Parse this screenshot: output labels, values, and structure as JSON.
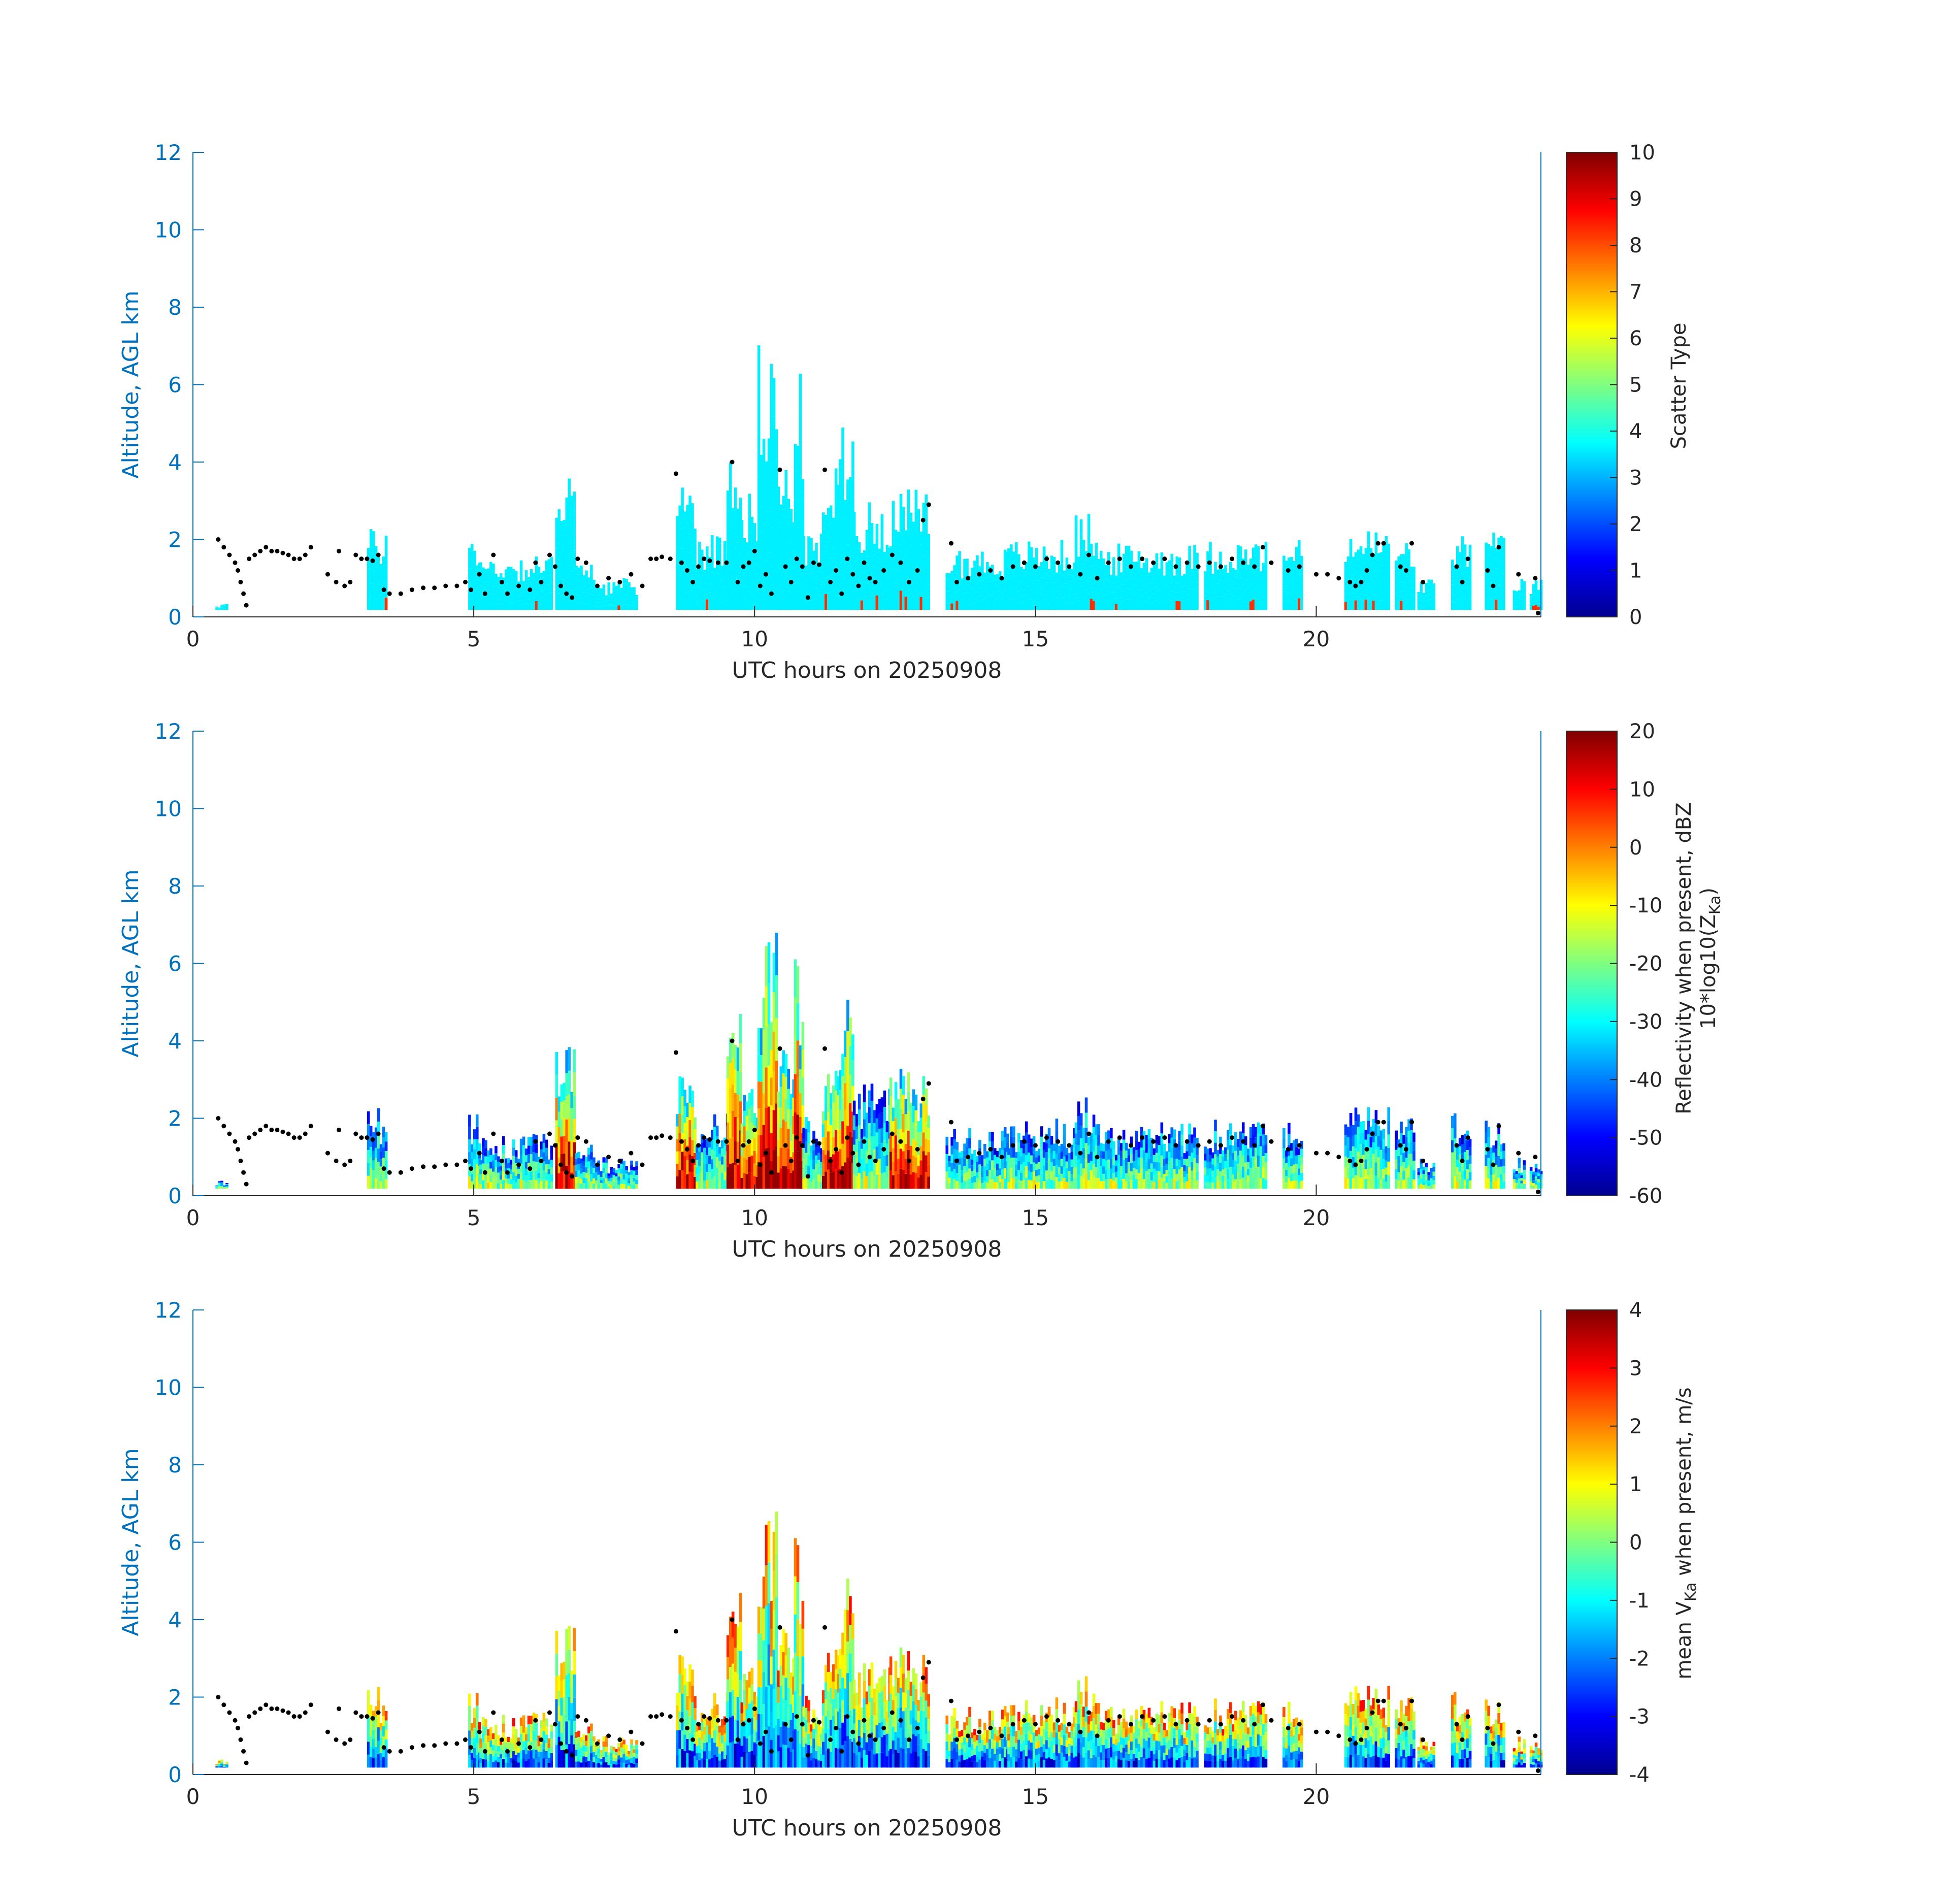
{
  "chart_data": [
    {
      "type": "heatmap",
      "panel": "scatter-type",
      "xlabel": "UTC hours on 20250908",
      "ylabel": "Altitude, AGL km",
      "xlim": [
        0,
        24
      ],
      "ylim": [
        0,
        12
      ],
      "xticks": [
        "0",
        "5",
        "10",
        "15",
        "20"
      ],
      "yticks": [
        "0",
        "2",
        "4",
        "6",
        "8",
        "10",
        "12"
      ],
      "colorbar": {
        "label_lines": [
          "Scatter Type"
        ],
        "range": [
          0,
          10
        ],
        "ticks": [
          "0",
          "1",
          "2",
          "3",
          "4",
          "5",
          "6",
          "7",
          "8",
          "9",
          "10"
        ],
        "colormap": "jet"
      },
      "background_value": 3.6,
      "highlight_value": 8.3,
      "scheme": "scatter"
    },
    {
      "type": "heatmap",
      "panel": "reflectivity",
      "xlabel": "UTC hours on 20250908",
      "ylabel": "Altitude, AGL km",
      "xlim": [
        0,
        24
      ],
      "ylim": [
        0,
        12
      ],
      "xticks": [
        "0",
        "5",
        "10",
        "15",
        "20"
      ],
      "yticks": [
        "0",
        "2",
        "4",
        "6",
        "8",
        "10",
        "12"
      ],
      "colorbar": {
        "label_lines": [
          "Reflectivity when present, dBZ",
          "10*log10(Z",
          "Ka",
          ")"
        ],
        "range": [
          -60,
          20
        ],
        "ticks": [
          "-60",
          "-50",
          "-40",
          "-30",
          "-20",
          "-10",
          "0",
          "10",
          "20"
        ],
        "colormap": "jet"
      },
      "scheme": "reflectivity"
    },
    {
      "type": "heatmap",
      "panel": "velocity",
      "xlabel": "UTC hours on 20250908",
      "ylabel": "Altitude, AGL km",
      "xlim": [
        0,
        24
      ],
      "ylim": [
        0,
        12
      ],
      "xticks": [
        "0",
        "5",
        "10",
        "15",
        "20"
      ],
      "yticks": [
        "0",
        "2",
        "4",
        "6",
        "8",
        "10",
        "12"
      ],
      "colorbar": {
        "label_lines": [
          "mean V",
          "Ka",
          " when present, m/s"
        ],
        "range": [
          -4,
          4
        ],
        "ticks": [
          "-4",
          "-3",
          "-2",
          "-1",
          "0",
          "1",
          "2",
          "3",
          "4"
        ],
        "colormap": "jet"
      },
      "scheme": "velocity"
    }
  ],
  "echo_columns": [
    {
      "t0": 0.4,
      "t1": 0.6,
      "h": 0.4
    },
    {
      "t0": 3.1,
      "t1": 3.45,
      "h": 2.3
    },
    {
      "t0": 4.9,
      "t1": 5.1,
      "h": 2.3
    },
    {
      "t0": 5.1,
      "t1": 6.4,
      "h": 1.6
    },
    {
      "t0": 6.45,
      "t1": 6.8,
      "h": 4.3
    },
    {
      "t0": 6.8,
      "t1": 7.2,
      "h": 1.4
    },
    {
      "t0": 7.2,
      "t1": 7.9,
      "h": 1.0
    },
    {
      "t0": 8.6,
      "t1": 8.95,
      "h": 3.6
    },
    {
      "t0": 8.95,
      "t1": 9.5,
      "h": 2.2
    },
    {
      "t0": 9.5,
      "t1": 9.75,
      "h": 4.8
    },
    {
      "t0": 9.75,
      "t1": 10.05,
      "h": 3.3
    },
    {
      "t0": 10.05,
      "t1": 10.4,
      "h": 7.1
    },
    {
      "t0": 10.4,
      "t1": 10.7,
      "h": 4.0
    },
    {
      "t0": 10.7,
      "t1": 10.85,
      "h": 6.3
    },
    {
      "t0": 10.85,
      "t1": 11.2,
      "h": 2.2
    },
    {
      "t0": 11.2,
      "t1": 11.5,
      "h": 3.9
    },
    {
      "t0": 11.5,
      "t1": 11.75,
      "h": 5.4
    },
    {
      "t0": 11.75,
      "t1": 12.4,
      "h": 3.0
    },
    {
      "t0": 12.4,
      "t1": 13.1,
      "h": 3.3
    },
    {
      "t0": 13.4,
      "t1": 14.5,
      "h": 1.8
    },
    {
      "t0": 14.5,
      "t1": 15.7,
      "h": 2.0
    },
    {
      "t0": 15.7,
      "t1": 16.1,
      "h": 2.7
    },
    {
      "t0": 16.1,
      "t1": 17.9,
      "h": 1.9
    },
    {
      "t0": 18.0,
      "t1": 19.1,
      "h": 2.0
    },
    {
      "t0": 19.4,
      "t1": 19.75,
      "h": 2.0
    },
    {
      "t0": 20.5,
      "t1": 21.3,
      "h": 2.3
    },
    {
      "t0": 21.4,
      "t1": 21.75,
      "h": 2.0
    },
    {
      "t0": 21.8,
      "t1": 22.1,
      "h": 1.0
    },
    {
      "t0": 22.4,
      "t1": 22.75,
      "h": 2.2
    },
    {
      "t0": 23.0,
      "t1": 23.35,
      "h": 2.2
    },
    {
      "t0": 23.5,
      "t1": 23.7,
      "h": 1.0
    },
    {
      "t0": 23.8,
      "t1": 24.0,
      "h": 1.0
    }
  ],
  "cloud_base_points": [
    [
      0.45,
      2.0
    ],
    [
      0.55,
      1.8
    ],
    [
      0.65,
      1.6
    ],
    [
      0.75,
      1.4
    ],
    [
      0.8,
      1.2
    ],
    [
      0.85,
      0.9
    ],
    [
      0.9,
      0.6
    ],
    [
      0.95,
      0.3
    ],
    [
      1.0,
      1.5
    ],
    [
      1.1,
      1.6
    ],
    [
      1.2,
      1.7
    ],
    [
      1.3,
      1.8
    ],
    [
      1.4,
      1.7
    ],
    [
      1.5,
      1.7
    ],
    [
      1.6,
      1.65
    ],
    [
      1.7,
      1.6
    ],
    [
      1.8,
      1.5
    ],
    [
      1.9,
      1.5
    ],
    [
      2.0,
      1.6
    ],
    [
      2.1,
      1.8
    ],
    [
      2.4,
      1.1
    ],
    [
      2.55,
      0.9
    ],
    [
      2.6,
      1.7
    ],
    [
      2.7,
      0.8
    ],
    [
      2.8,
      0.9
    ],
    [
      2.9,
      1.6
    ],
    [
      3.0,
      1.5
    ],
    [
      3.1,
      1.5
    ],
    [
      3.2,
      1.45
    ],
    [
      3.3,
      1.6
    ],
    [
      3.4,
      0.7
    ],
    [
      3.5,
      0.6
    ],
    [
      3.7,
      0.6
    ],
    [
      3.9,
      0.7
    ],
    [
      4.1,
      0.75
    ],
    [
      4.3,
      0.75
    ],
    [
      4.5,
      0.8
    ],
    [
      4.7,
      0.8
    ],
    [
      4.85,
      0.9
    ],
    [
      4.95,
      0.7
    ],
    [
      5.1,
      1.1
    ],
    [
      5.2,
      0.6
    ],
    [
      5.35,
      1.6
    ],
    [
      5.5,
      0.9
    ],
    [
      5.6,
      0.6
    ],
    [
      5.8,
      0.8
    ],
    [
      6.0,
      0.7
    ],
    [
      6.1,
      1.4
    ],
    [
      6.2,
      0.9
    ],
    [
      6.35,
      1.6
    ],
    [
      6.45,
      1.3
    ],
    [
      6.55,
      0.8
    ],
    [
      6.65,
      0.6
    ],
    [
      6.75,
      0.5
    ],
    [
      6.85,
      1.5
    ],
    [
      7.0,
      1.4
    ],
    [
      7.2,
      0.8
    ],
    [
      7.4,
      1.0
    ],
    [
      7.6,
      0.9
    ],
    [
      7.8,
      1.1
    ],
    [
      8.0,
      0.8
    ],
    [
      8.15,
      1.5
    ],
    [
      8.25,
      1.5
    ],
    [
      8.35,
      1.55
    ],
    [
      8.5,
      1.5
    ],
    [
      8.6,
      3.7
    ],
    [
      8.7,
      1.4
    ],
    [
      8.8,
      1.2
    ],
    [
      8.9,
      0.9
    ],
    [
      9.0,
      1.3
    ],
    [
      9.1,
      1.5
    ],
    [
      9.2,
      1.45
    ],
    [
      9.35,
      1.4
    ],
    [
      9.5,
      1.4
    ],
    [
      9.6,
      4.0
    ],
    [
      9.7,
      0.9
    ],
    [
      9.8,
      1.3
    ],
    [
      9.9,
      1.4
    ],
    [
      10.0,
      1.7
    ],
    [
      10.1,
      0.8
    ],
    [
      10.2,
      1.1
    ],
    [
      10.3,
      0.6
    ],
    [
      10.45,
      3.8
    ],
    [
      10.55,
      1.3
    ],
    [
      10.65,
      0.9
    ],
    [
      10.75,
      1.5
    ],
    [
      10.85,
      1.3
    ],
    [
      10.95,
      0.5
    ],
    [
      11.05,
      1.4
    ],
    [
      11.15,
      1.35
    ],
    [
      11.25,
      3.8
    ],
    [
      11.35,
      0.9
    ],
    [
      11.45,
      1.2
    ],
    [
      11.55,
      0.6
    ],
    [
      11.65,
      1.5
    ],
    [
      11.75,
      1.1
    ],
    [
      11.85,
      0.8
    ],
    [
      11.95,
      1.4
    ],
    [
      12.05,
      1.0
    ],
    [
      12.15,
      0.9
    ],
    [
      12.3,
      1.2
    ],
    [
      12.45,
      1.6
    ],
    [
      12.6,
      1.4
    ],
    [
      12.75,
      0.9
    ],
    [
      12.9,
      1.2
    ],
    [
      13.0,
      2.5
    ],
    [
      13.1,
      2.9
    ],
    [
      13.5,
      1.9
    ],
    [
      13.6,
      0.9
    ],
    [
      13.8,
      1.0
    ],
    [
      14.0,
      1.1
    ],
    [
      14.2,
      1.2
    ],
    [
      14.4,
      1.0
    ],
    [
      14.6,
      1.3
    ],
    [
      14.8,
      1.4
    ],
    [
      15.0,
      1.3
    ],
    [
      15.2,
      1.5
    ],
    [
      15.4,
      1.4
    ],
    [
      15.6,
      1.3
    ],
    [
      15.8,
      1.1
    ],
    [
      15.95,
      1.6
    ],
    [
      16.1,
      1.0
    ],
    [
      16.3,
      1.4
    ],
    [
      16.5,
      1.5
    ],
    [
      16.7,
      1.3
    ],
    [
      16.9,
      1.5
    ],
    [
      17.1,
      1.4
    ],
    [
      17.3,
      1.5
    ],
    [
      17.5,
      1.3
    ],
    [
      17.7,
      1.4
    ],
    [
      17.9,
      1.3
    ],
    [
      18.1,
      1.4
    ],
    [
      18.3,
      1.3
    ],
    [
      18.5,
      1.5
    ],
    [
      18.7,
      1.4
    ],
    [
      18.9,
      1.3
    ],
    [
      19.05,
      1.8
    ],
    [
      19.2,
      1.4
    ],
    [
      19.5,
      1.2
    ],
    [
      19.7,
      1.3
    ],
    [
      20.0,
      1.1
    ],
    [
      20.2,
      1.1
    ],
    [
      20.4,
      1.0
    ],
    [
      20.6,
      0.9
    ],
    [
      20.7,
      0.8
    ],
    [
      20.8,
      0.9
    ],
    [
      20.9,
      1.2
    ],
    [
      21.0,
      1.6
    ],
    [
      21.1,
      1.9
    ],
    [
      21.2,
      1.9
    ],
    [
      21.5,
      1.3
    ],
    [
      21.6,
      1.2
    ],
    [
      21.7,
      1.9
    ],
    [
      21.9,
      0.9
    ],
    [
      22.5,
      1.3
    ],
    [
      22.6,
      0.9
    ],
    [
      22.7,
      1.5
    ],
    [
      23.05,
      1.2
    ],
    [
      23.15,
      0.8
    ],
    [
      23.25,
      1.8
    ],
    [
      23.6,
      1.1
    ],
    [
      23.9,
      1.0
    ],
    [
      23.95,
      0.1
    ]
  ]
}
